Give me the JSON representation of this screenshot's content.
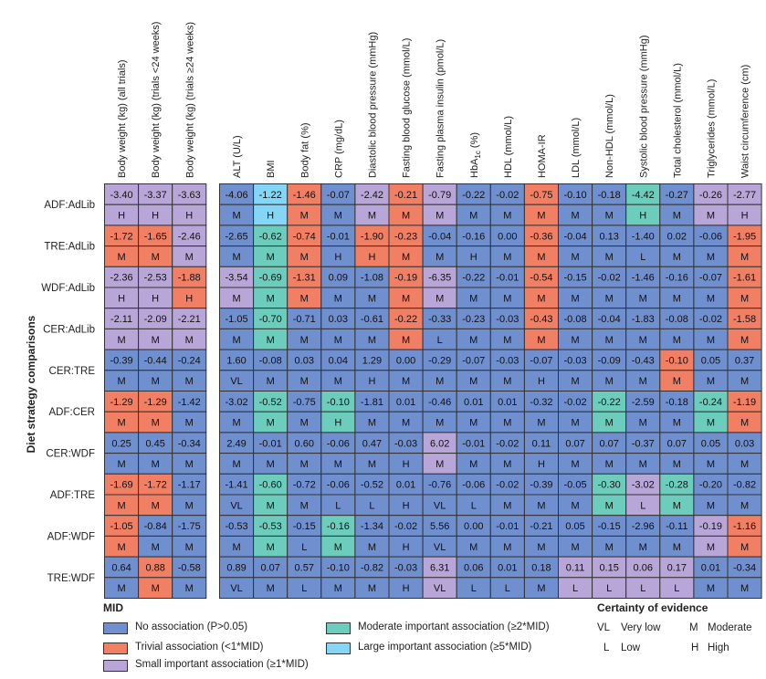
{
  "chart_data": {
    "type": "heatmap",
    "y_axis_title": "Diet strategy comparisons",
    "group1_columns": [
      "Body weight (kg) (all trials)",
      "Body weight (kg) (trials <24 weeks)",
      "Body weight (kg) (trials ≥24 weeks)"
    ],
    "group2_columns": [
      "ALT (U/L)",
      "BMI",
      "Body fat (%)",
      "CRP (mg/dL)",
      "Diastolic blood pressure (mmHg)",
      "Fasting blood glucose (mmol/L)",
      "Fasting plasma insulin (pmol/L)",
      "HbA1c (%)",
      "HDL (mmol/L)",
      "HOMA-IR",
      "LDL (mmol/L)",
      "Non-HDL (mmol/L)",
      "Systolic blood pressure (mmHg)",
      "Total cholesterol (mmol/L)",
      "Triglycerides (mmol/L)",
      "Waist circumference (cm)"
    ],
    "rows": [
      {
        "label": "ADF:AdLib",
        "values": [
          "-3.40",
          "-3.37",
          "-3.63",
          "-4.06",
          "-1.22",
          "-1.46",
          "-0.07",
          "-2.42",
          "-0.21",
          "-0.79",
          "-0.22",
          "-0.02",
          "-0.75",
          "-0.10",
          "-0.18",
          "-4.42",
          "-0.27",
          "-0.26",
          "-2.77"
        ],
        "mid": [
          "S",
          "S",
          "S",
          "N",
          "L",
          "T",
          "N",
          "S",
          "T",
          "S",
          "N",
          "N",
          "T",
          "N",
          "N",
          "M",
          "N",
          "S",
          "S"
        ],
        "certainty": [
          "H",
          "H",
          "H",
          "M",
          "H",
          "M",
          "M",
          "M",
          "M",
          "M",
          "M",
          "M",
          "M",
          "M",
          "M",
          "H",
          "M",
          "M",
          "H"
        ]
      },
      {
        "label": "TRE:AdLib",
        "values": [
          "-1.72",
          "-1.65",
          "-2.46",
          "-2.65",
          "-0.62",
          "-0.74",
          "-0.01",
          "-1.90",
          "-0.23",
          "-0.04",
          "-0.16",
          "0.00",
          "-0.36",
          "-0.04",
          "0.13",
          "-1.40",
          "0.02",
          "-0.06",
          "-1.95"
        ],
        "mid": [
          "T",
          "T",
          "S",
          "N",
          "M",
          "T",
          "N",
          "T",
          "T",
          "N",
          "N",
          "N",
          "T",
          "N",
          "N",
          "N",
          "N",
          "N",
          "T"
        ],
        "certainty": [
          "M",
          "M",
          "M",
          "M",
          "M",
          "M",
          "H",
          "H",
          "M",
          "M",
          "H",
          "M",
          "M",
          "M",
          "M",
          "L",
          "M",
          "M",
          "M"
        ]
      },
      {
        "label": "WDF:AdLib",
        "values": [
          "-2.36",
          "-2.53",
          "-1.88",
          "-3.54",
          "-0.69",
          "-1.31",
          "0.09",
          "-1.08",
          "-0.19",
          "-6.35",
          "-0.22",
          "-0.01",
          "-0.54",
          "-0.15",
          "-0.02",
          "-1.46",
          "-0.16",
          "-0.07",
          "-1.61"
        ],
        "mid": [
          "S",
          "S",
          "T",
          "S",
          "M",
          "T",
          "N",
          "N",
          "T",
          "S",
          "N",
          "N",
          "T",
          "N",
          "N",
          "N",
          "N",
          "N",
          "T"
        ],
        "certainty": [
          "H",
          "H",
          "H",
          "M",
          "M",
          "M",
          "M",
          "M",
          "M",
          "M",
          "M",
          "M",
          "M",
          "M",
          "M",
          "M",
          "M",
          "M",
          "M"
        ]
      },
      {
        "label": "CER:AdLib",
        "values": [
          "-2.11",
          "-2.09",
          "-2.21",
          "-1.05",
          "-0.70",
          "-0.71",
          "0.03",
          "-0.61",
          "-0.22",
          "-0.33",
          "-0.23",
          "-0.03",
          "-0.43",
          "-0.08",
          "-0.04",
          "-1.83",
          "-0.08",
          "-0.02",
          "-1.58"
        ],
        "mid": [
          "S",
          "S",
          "S",
          "N",
          "M",
          "N",
          "N",
          "N",
          "T",
          "N",
          "N",
          "N",
          "T",
          "N",
          "N",
          "N",
          "N",
          "N",
          "T"
        ],
        "certainty": [
          "M",
          "M",
          "M",
          "M",
          "M",
          "M",
          "M",
          "M",
          "M",
          "L",
          "M",
          "M",
          "M",
          "M",
          "M",
          "M",
          "M",
          "M",
          "M"
        ]
      },
      {
        "label": "CER:TRE",
        "values": [
          "-0.39",
          "-0.44",
          "-0.24",
          "1.60",
          "-0.08",
          "0.03",
          "0.04",
          "1.29",
          "0.00",
          "-0.29",
          "-0.07",
          "-0.03",
          "-0.07",
          "-0.03",
          "-0.09",
          "-0.43",
          "-0.10",
          "0.05",
          "0.37"
        ],
        "mid": [
          "N",
          "N",
          "N",
          "N",
          "N",
          "N",
          "N",
          "N",
          "N",
          "N",
          "N",
          "N",
          "N",
          "N",
          "N",
          "N",
          "T",
          "N",
          "N"
        ],
        "certainty": [
          "M",
          "M",
          "M",
          "VL",
          "M",
          "M",
          "M",
          "H",
          "M",
          "M",
          "M",
          "M",
          "H",
          "M",
          "M",
          "M",
          "M",
          "M",
          "M"
        ]
      },
      {
        "label": "ADF:CER",
        "values": [
          "-1.29",
          "-1.29",
          "-1.42",
          "-3.02",
          "-0.52",
          "-0.75",
          "-0.10",
          "-1.81",
          "0.01",
          "-0.46",
          "0.01",
          "0.01",
          "-0.32",
          "-0.02",
          "-0.22",
          "-2.59",
          "-0.18",
          "-0.24",
          "-1.19"
        ],
        "mid": [
          "T",
          "T",
          "N",
          "N",
          "M",
          "N",
          "M",
          "N",
          "N",
          "N",
          "N",
          "N",
          "N",
          "N",
          "M",
          "N",
          "N",
          "M",
          "T"
        ],
        "certainty": [
          "M",
          "M",
          "M",
          "M",
          "M",
          "M",
          "H",
          "M",
          "M",
          "M",
          "M",
          "M",
          "M",
          "M",
          "M",
          "M",
          "M",
          "M",
          "M"
        ]
      },
      {
        "label": "CER:WDF",
        "values": [
          "0.25",
          "0.45",
          "-0.34",
          "2.49",
          "-0.01",
          "0.60",
          "-0.06",
          "0.47",
          "-0.03",
          "6.02",
          "-0.01",
          "-0.02",
          "0.11",
          "0.07",
          "0.07",
          "-0.37",
          "0.07",
          "0.05",
          "0.03"
        ],
        "mid": [
          "N",
          "N",
          "N",
          "N",
          "N",
          "N",
          "N",
          "N",
          "N",
          "S",
          "N",
          "N",
          "N",
          "N",
          "N",
          "N",
          "N",
          "N",
          "N"
        ],
        "certainty": [
          "M",
          "M",
          "M",
          "M",
          "M",
          "M",
          "M",
          "M",
          "H",
          "M",
          "M",
          "M",
          "H",
          "M",
          "M",
          "M",
          "M",
          "M",
          "M"
        ]
      },
      {
        "label": "ADF:TRE",
        "values": [
          "-1.69",
          "-1.72",
          "-1.17",
          "-1.41",
          "-0.60",
          "-0.72",
          "-0.06",
          "-0.52",
          "0.01",
          "-0.76",
          "-0.06",
          "-0.02",
          "-0.39",
          "-0.05",
          "-0.30",
          "-3.02",
          "-0.28",
          "-0.20",
          "-0.82"
        ],
        "mid": [
          "T",
          "T",
          "N",
          "N",
          "M",
          "N",
          "N",
          "N",
          "N",
          "N",
          "N",
          "N",
          "N",
          "N",
          "M",
          "S",
          "M",
          "N",
          "N"
        ],
        "certainty": [
          "M",
          "M",
          "M",
          "VL",
          "M",
          "M",
          "L",
          "L",
          "H",
          "VL",
          "L",
          "M",
          "M",
          "M",
          "M",
          "L",
          "M",
          "M",
          "M"
        ]
      },
      {
        "label": "ADF:WDF",
        "values": [
          "-1.05",
          "-0.84",
          "-1.75",
          "-0.53",
          "-0.53",
          "-0.15",
          "-0.16",
          "-1.34",
          "-0.02",
          "5.56",
          "0.00",
          "-0.01",
          "-0.21",
          "0.05",
          "-0.15",
          "-2.96",
          "-0.11",
          "-0.19",
          "-1.16"
        ],
        "mid": [
          "T",
          "N",
          "N",
          "N",
          "M",
          "N",
          "M",
          "N",
          "N",
          "N",
          "N",
          "N",
          "N",
          "N",
          "N",
          "N",
          "N",
          "S",
          "T"
        ],
        "certainty": [
          "M",
          "M",
          "M",
          "M",
          "M",
          "L",
          "M",
          "M",
          "H",
          "VL",
          "M",
          "M",
          "M",
          "M",
          "M",
          "M",
          "M",
          "M",
          "M"
        ]
      },
      {
        "label": "TRE:WDF",
        "values": [
          "0.64",
          "0.88",
          "-0.58",
          "0.89",
          "0.07",
          "0.57",
          "-0.10",
          "-0.82",
          "-0.03",
          "6.31",
          "0.06",
          "0.01",
          "0.18",
          "0.11",
          "0.15",
          "0.06",
          "0.17",
          "0.01",
          "-0.34"
        ],
        "mid": [
          "N",
          "T",
          "N",
          "N",
          "N",
          "N",
          "N",
          "N",
          "N",
          "S",
          "N",
          "N",
          "N",
          "S",
          "S",
          "S",
          "S",
          "N",
          "N"
        ],
        "certainty": [
          "M",
          "M",
          "M",
          "VL",
          "M",
          "L",
          "M",
          "M",
          "H",
          "VL",
          "L",
          "L",
          "M",
          "L",
          "L",
          "L",
          "L",
          "M",
          "M"
        ]
      }
    ],
    "mid_legend": {
      "title": "MID",
      "items": [
        {
          "key": "N",
          "label": "No association (P>0.05)",
          "color": "#6f8fcf"
        },
        {
          "key": "T",
          "label": "Trivial association (<1*MID)",
          "color": "#f07f63"
        },
        {
          "key": "S",
          "label": "Small important association (≥1*MID)",
          "color": "#b9a6d8"
        },
        {
          "key": "M",
          "label": "Moderate important association (≥2*MID)",
          "color": "#6ccdbd"
        },
        {
          "key": "L",
          "label": "Large important association (≥5*MID)",
          "color": "#83d6f5"
        }
      ]
    },
    "certainty_legend": {
      "title": "Certainty of evidence",
      "items": [
        {
          "code": "VL",
          "label": "Very low"
        },
        {
          "code": "L",
          "label": "Low"
        },
        {
          "code": "M",
          "label": "Moderate"
        },
        {
          "code": "H",
          "label": "High"
        }
      ]
    }
  }
}
